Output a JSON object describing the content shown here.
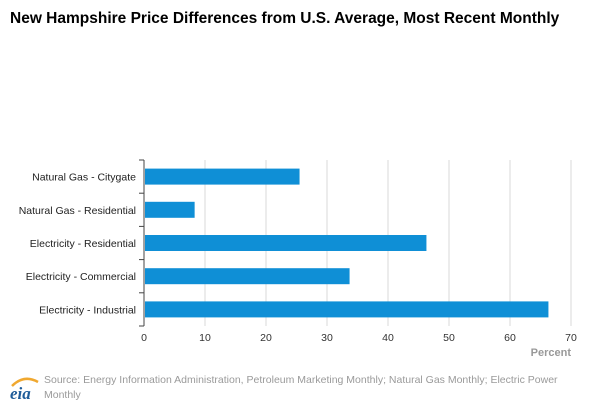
{
  "title": "New Hampshire Price Differences from U.S. Average, Most Recent Monthly",
  "source": "Source: Energy Information Administration, Petroleum Marketing Monthly; Natural Gas Monthly; Electric Power Monthly",
  "logo_text": "eia",
  "colors": {
    "bar": "#0f8fd6",
    "grid": "#d8d8d8",
    "axis": "#444444",
    "logo_blue": "#1f5c99",
    "logo_accent": "#f0a830"
  },
  "chart_data": {
    "type": "bar",
    "orientation": "horizontal",
    "categories": [
      "Natural Gas - Citygate",
      "Natural Gas - Residential",
      "Electricity - Residential",
      "Electricity - Commercial",
      "Electricity - Industrial"
    ],
    "values": [
      25.5,
      8.3,
      46.3,
      33.7,
      66.3
    ],
    "xlabel": "Percent",
    "ylabel": "",
    "xlim": [
      0,
      70
    ],
    "xticks": [
      0,
      10,
      20,
      30,
      40,
      50,
      60,
      70
    ],
    "grid": true
  }
}
